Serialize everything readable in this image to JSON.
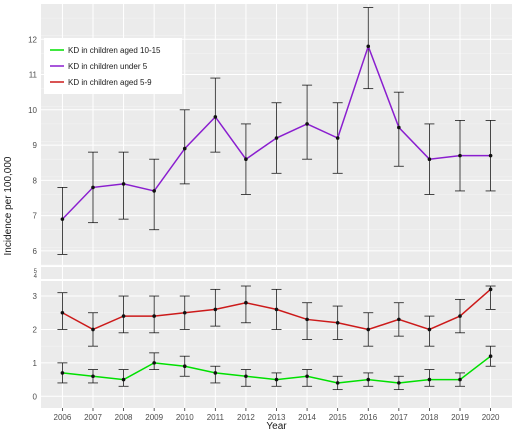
{
  "chart_data": {
    "type": "line",
    "xlabel": "Year",
    "ylabel": "Incidence per 100,000",
    "x": [
      2006,
      2007,
      2008,
      2009,
      2010,
      2011,
      2012,
      2013,
      2014,
      2015,
      2016,
      2017,
      2018,
      2019,
      2020
    ],
    "axis_break": true,
    "upper_panel": {
      "ylim": [
        5.6,
        13.0
      ],
      "yticks": [
        6,
        7,
        8,
        9,
        10,
        11,
        12
      ]
    },
    "lower_panel": {
      "ylim": [
        -0.35,
        3.45
      ],
      "yticks": [
        0,
        1,
        2,
        3
      ]
    },
    "break_ticks": [
      "5",
      "4"
    ],
    "grid": true,
    "legend_position": "top-left",
    "series": [
      {
        "name": "KD in children aged 10-15",
        "color": "#00e000",
        "panel": "lower",
        "values": [
          0.7,
          0.6,
          0.5,
          1.0,
          0.9,
          0.7,
          0.6,
          0.5,
          0.6,
          0.4,
          0.5,
          0.4,
          0.5,
          0.5,
          1.2
        ],
        "lower": [
          0.4,
          0.4,
          0.3,
          0.8,
          0.6,
          0.4,
          0.3,
          0.3,
          0.3,
          0.2,
          0.3,
          0.2,
          0.3,
          0.3,
          0.9
        ],
        "upper": [
          1.0,
          0.8,
          0.8,
          1.3,
          1.2,
          0.9,
          0.8,
          0.7,
          0.8,
          0.6,
          0.7,
          0.6,
          0.8,
          0.7,
          1.5
        ]
      },
      {
        "name": "KD in children under 5",
        "color": "#8a1ecf",
        "panel": "upper",
        "values": [
          6.9,
          7.8,
          7.9,
          7.7,
          8.9,
          9.8,
          8.6,
          9.2,
          9.6,
          9.2,
          11.8,
          9.5,
          8.6,
          8.7,
          8.7
        ],
        "lower": [
          5.9,
          6.8,
          6.9,
          6.6,
          7.9,
          8.8,
          7.6,
          8.2,
          8.6,
          8.2,
          10.6,
          8.4,
          7.6,
          7.7,
          7.7
        ],
        "upper": [
          7.8,
          8.8,
          8.8,
          8.6,
          10.0,
          10.9,
          9.6,
          10.2,
          10.7,
          10.2,
          12.9,
          10.5,
          9.6,
          9.7,
          9.7
        ]
      },
      {
        "name": "KD in children aged 5-9",
        "color": "#cc1a1a",
        "panel": "lower",
        "values": [
          2.5,
          2.0,
          2.4,
          2.4,
          2.5,
          2.6,
          2.8,
          2.6,
          2.3,
          2.2,
          2.0,
          2.3,
          2.0,
          2.4,
          3.2
        ],
        "lower": [
          2.0,
          1.5,
          1.9,
          1.9,
          2.0,
          2.1,
          2.2,
          2.0,
          1.7,
          1.7,
          1.5,
          1.8,
          1.5,
          1.9,
          2.6
        ],
        "upper": [
          3.1,
          2.5,
          3.0,
          3.0,
          3.0,
          3.2,
          3.3,
          3.2,
          2.8,
          2.7,
          2.5,
          2.8,
          2.4,
          2.9,
          3.3
        ]
      }
    ]
  }
}
